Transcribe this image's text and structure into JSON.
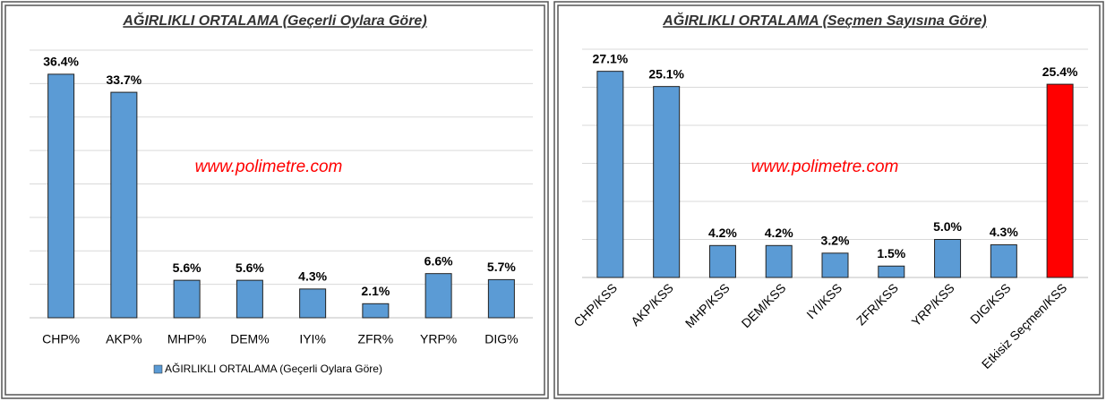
{
  "chart_data": [
    {
      "type": "bar",
      "title": "AĞIRLIKLI ORTALAMA (Geçerli Oylara Göre)",
      "categories": [
        "CHP%",
        "AKP%",
        "MHP%",
        "DEM%",
        "IYI%",
        "ZFR%",
        "YRP%",
        "DIG%"
      ],
      "series": [
        {
          "name": "AĞIRLIKLI ORTALAMA (Geçerli Oylara Göre)",
          "color": "#5b9bd5",
          "values": [
            36.4,
            33.7,
            5.6,
            5.6,
            4.3,
            2.1,
            6.6,
            5.7
          ],
          "value_labels": [
            "36.4%",
            "33.7%",
            "5.6%",
            "5.6%",
            "4.3%",
            "2.1%",
            "6.6%",
            "5.7%"
          ]
        }
      ],
      "annotation": "www.polimetre.com",
      "ylim": [
        0,
        40
      ],
      "yticks": [
        0,
        5,
        10,
        15,
        20,
        25,
        30,
        35,
        40
      ],
      "grid": true,
      "legend": "bottom"
    },
    {
      "type": "bar",
      "title": "AĞIRLIKLI ORTALAMA (Seçmen Sayısına Göre)",
      "categories": [
        "CHP/KSS",
        "AKP/KSS",
        "MHP/KSS",
        "DEM/KSS",
        "IYI/KSS",
        "ZFR/KSS",
        "YRP/KSS",
        "DIG/KSS",
        "Etkisiz Seçmen/KSS"
      ],
      "values": [
        27.1,
        25.1,
        4.2,
        4.2,
        3.2,
        1.5,
        5.0,
        4.3,
        25.4
      ],
      "value_labels": [
        "27.1%",
        "25.1%",
        "4.2%",
        "4.2%",
        "3.2%",
        "1.5%",
        "5.0%",
        "4.3%",
        "25.4%"
      ],
      "colors": [
        "#5b9bd5",
        "#5b9bd5",
        "#5b9bd5",
        "#5b9bd5",
        "#5b9bd5",
        "#5b9bd5",
        "#5b9bd5",
        "#5b9bd5",
        "#ff0000"
      ],
      "annotation": "www.polimetre.com",
      "ylim": [
        0,
        30
      ],
      "yticks": [
        0,
        5,
        10,
        15,
        20,
        25,
        30
      ],
      "grid": true
    }
  ]
}
